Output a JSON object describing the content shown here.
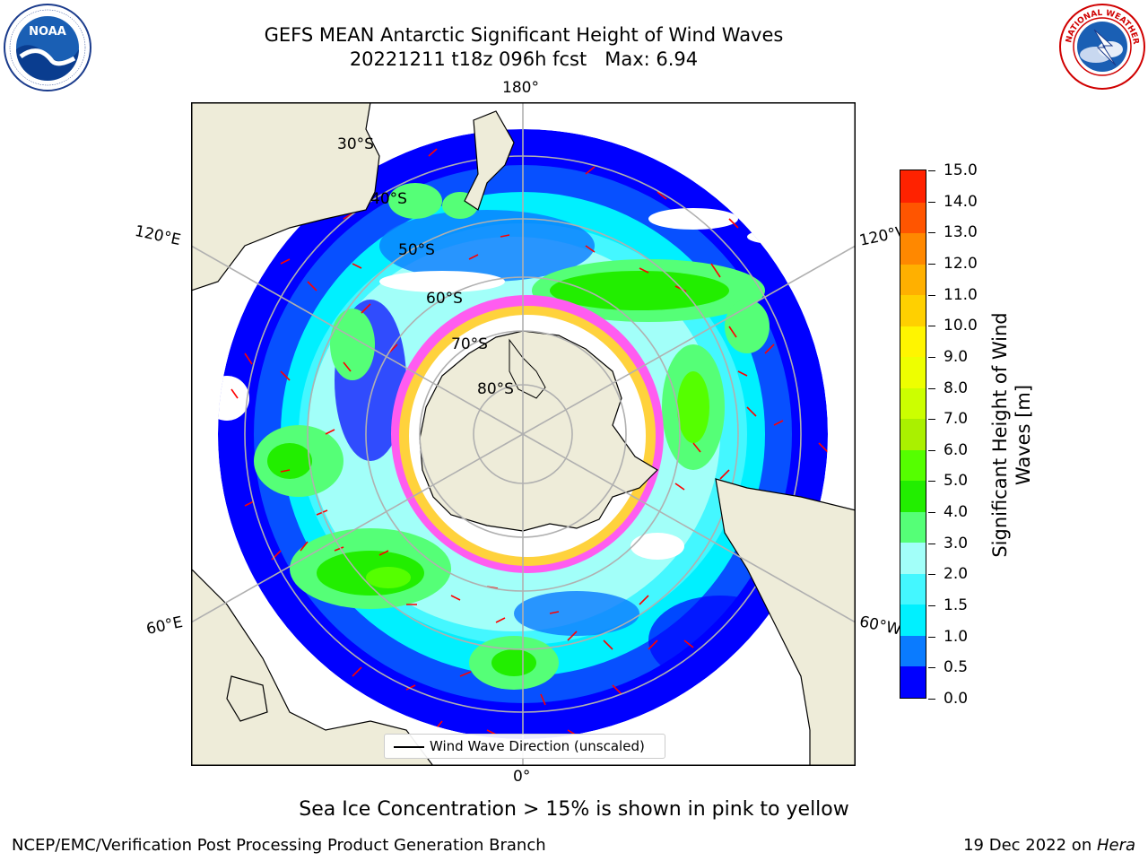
{
  "title": {
    "line1": "GEFS MEAN Antarctic Significant Height of Wind Waves",
    "line2": "20221211 t18z 096h fcst   Max: 6.94"
  },
  "logos": {
    "left": {
      "name": "NOAA",
      "icon": "noaa-logo",
      "ring_text": "NATIONAL OCEANIC AND ATMOSPHERIC ADMINISTRATION · U.S. DEPARTMENT OF COMMERCE"
    },
    "right": {
      "name": "NATIONAL WEATHER SERVICE",
      "icon": "nws-logo"
    }
  },
  "map": {
    "projection": "south polar stereographic",
    "longitude_labels": {
      "top": "180°",
      "left_upper": "120°E",
      "right_upper": "120°W",
      "left_lower": "60°E",
      "right_lower": "60°W",
      "bottom": "0°"
    },
    "latitude_labels": [
      "30°S",
      "40°S",
      "50°S",
      "60°S",
      "70°S",
      "80°S"
    ],
    "colors": {
      "land": "#eeecd9",
      "ice_pink": "#ff5cf0",
      "ice_yellow": "#ffd23c",
      "ice_white": "#ffffff",
      "arrow": "#ff0000",
      "grid": "#b0b0b0"
    }
  },
  "legend": {
    "entry": "Wind Wave Direction (unscaled)"
  },
  "colorbar": {
    "label": "Significant Height of Wind Waves [m]",
    "ticks": [
      "0.0",
      "0.5",
      "1.0",
      "1.5",
      "2.0",
      "3.0",
      "4.0",
      "5.0",
      "6.0",
      "7.0",
      "8.0",
      "9.0",
      "10.0",
      "11.0",
      "12.0",
      "13.0",
      "14.0",
      "15.0"
    ],
    "colors": [
      "#0000ff",
      "#0a7bff",
      "#00f0ff",
      "#44f7ff",
      "#a2fff9",
      "#55ff77",
      "#22ee00",
      "#55ff00",
      "#aaf000",
      "#ccff00",
      "#eeff00",
      "#fff500",
      "#ffd000",
      "#ffb000",
      "#ff8800",
      "#ff5500",
      "#ff2200"
    ]
  },
  "note": "Sea Ice Concentration > 15% is shown in pink to yellow",
  "footer": {
    "left": "NCEP/EMC/Verification Post Processing Product Generation Branch",
    "date": "19 Dec 2022 on ",
    "machine": "Hera"
  }
}
